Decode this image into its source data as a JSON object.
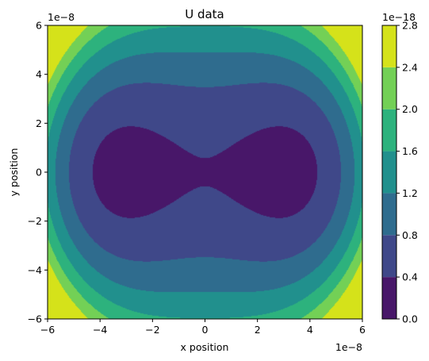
{
  "chart_data": {
    "type": "contourf",
    "title": "U data",
    "xlabel": "x position",
    "ylabel": "y position",
    "x_offset_text": "1e−8",
    "y_offset_text": "1e−8",
    "xlim": [
      -6,
      6
    ],
    "ylim": [
      -6,
      6
    ],
    "x_ticks": [
      -6,
      -4,
      -2,
      0,
      2,
      4,
      6
    ],
    "y_ticks": [
      -6,
      -4,
      -2,
      0,
      2,
      4,
      6
    ],
    "x_tick_labels": [
      "−6",
      "−4",
      "−2",
      "0",
      "2",
      "4",
      "6"
    ],
    "y_tick_labels": [
      "−6",
      "−4",
      "−2",
      "0",
      "2",
      "4",
      "6"
    ],
    "colorbar": {
      "offset_text": "1e−18",
      "levels": [
        0.0,
        0.4,
        0.8,
        1.2,
        1.6,
        2.0,
        2.4,
        2.8
      ],
      "level_labels": [
        "0.0",
        "0.4",
        "0.8",
        "1.2",
        "1.6",
        "2.0",
        "2.4",
        "2.8"
      ],
      "colors": [
        "#481769",
        "#3f4889",
        "#2f6c8e",
        "#21908d",
        "#2db27d",
        "#73d056",
        "#d5e21a"
      ]
    },
    "grid": false
  }
}
